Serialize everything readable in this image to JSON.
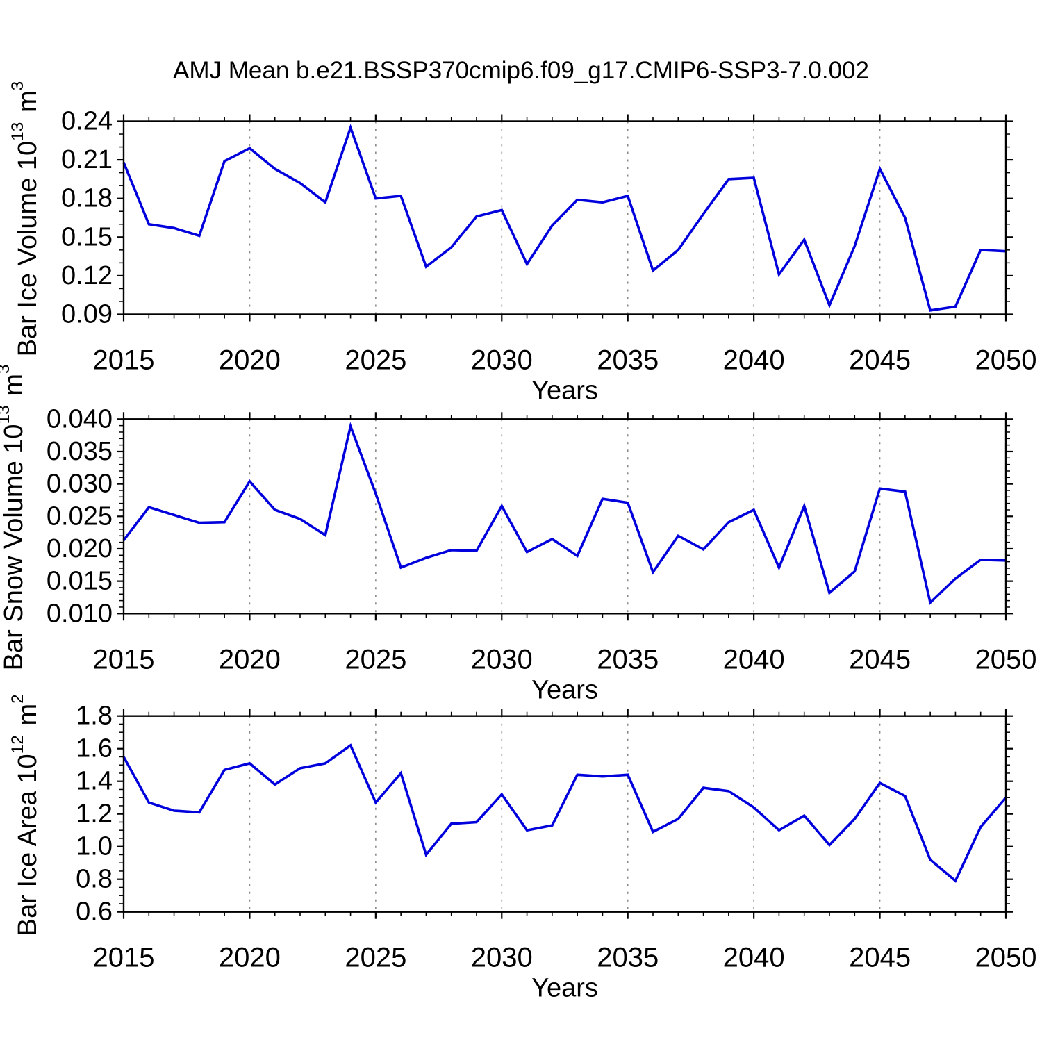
{
  "title": "AMJ Mean b.e21.BSSP370cmip6.f09_g17.CMIP6-SSP3-7.0.002",
  "colors": {
    "line": "#0000dd",
    "grid": "#888888",
    "axis": "#000000",
    "background": "#ffffff"
  },
  "x_axis": {
    "label": "Years",
    "start": 2015,
    "end": 2050,
    "major_tick_step": 5,
    "minor_tick_step": 1,
    "gridline_years": [
      2020,
      2025,
      2030,
      2035,
      2040,
      2045
    ],
    "tick_labels": [
      "2015",
      "2020",
      "2025",
      "2030",
      "2035",
      "2040",
      "2045",
      "2050"
    ]
  },
  "chart_data": [
    {
      "id": "ice-volume-panel",
      "type": "line",
      "ylabel_text": "Bar Ice Volume 10^13 m^3",
      "ylabel_base": "Bar Ice Volume 10",
      "ylabel_exp": "13",
      "ylabel_unit": " m",
      "ylabel_unit_exp": "3",
      "xlabel": "Years",
      "ylim": [
        0.09,
        0.24
      ],
      "yticks": [
        0.09,
        0.12,
        0.15,
        0.18,
        0.21,
        0.24
      ],
      "ytick_labels": [
        "0.09",
        "0.12",
        "0.15",
        "0.18",
        "0.21",
        "0.24"
      ],
      "y_minor_step": 0.01,
      "x": [
        2015,
        2016,
        2017,
        2018,
        2019,
        2020,
        2021,
        2022,
        2023,
        2024,
        2025,
        2026,
        2027,
        2028,
        2029,
        2030,
        2031,
        2032,
        2033,
        2034,
        2035,
        2036,
        2037,
        2038,
        2039,
        2040,
        2041,
        2042,
        2043,
        2044,
        2045,
        2046,
        2047,
        2048,
        2049,
        2050
      ],
      "values": [
        0.208,
        0.16,
        0.157,
        0.151,
        0.209,
        0.219,
        0.203,
        0.192,
        0.177,
        0.235,
        0.18,
        0.182,
        0.127,
        0.142,
        0.166,
        0.171,
        0.129,
        0.159,
        0.179,
        0.177,
        0.182,
        0.124,
        0.14,
        0.168,
        0.195,
        0.196,
        0.121,
        0.148,
        0.097,
        0.143,
        0.203,
        0.165,
        0.093,
        0.096,
        0.14,
        0.139
      ]
    },
    {
      "id": "snow-volume-panel",
      "type": "line",
      "ylabel_text": "Bar Snow Volume 10^13 m^3",
      "ylabel_base": "Bar Snow Volume 10",
      "ylabel_exp": "13",
      "ylabel_unit": " m",
      "ylabel_unit_exp": "3",
      "xlabel": "Years",
      "ylim": [
        0.01,
        0.04
      ],
      "yticks": [
        0.01,
        0.015,
        0.02,
        0.025,
        0.03,
        0.035,
        0.04
      ],
      "ytick_labels": [
        "0.010",
        "0.015",
        "0.020",
        "0.025",
        "0.030",
        "0.035",
        "0.040"
      ],
      "y_minor_step": 0.001,
      "x": [
        2015,
        2016,
        2017,
        2018,
        2019,
        2020,
        2021,
        2022,
        2023,
        2024,
        2025,
        2026,
        2027,
        2028,
        2029,
        2030,
        2031,
        2032,
        2033,
        2034,
        2035,
        2036,
        2037,
        2038,
        2039,
        2040,
        2041,
        2042,
        2043,
        2044,
        2045,
        2046,
        2047,
        2048,
        2049,
        2050
      ],
      "values": [
        0.0213,
        0.0264,
        0.0252,
        0.024,
        0.0241,
        0.0304,
        0.026,
        0.0246,
        0.0221,
        0.0389,
        0.0285,
        0.0171,
        0.0186,
        0.0198,
        0.0197,
        0.0266,
        0.0195,
        0.0215,
        0.0189,
        0.0277,
        0.0271,
        0.0164,
        0.022,
        0.0199,
        0.0241,
        0.026,
        0.0171,
        0.0266,
        0.0132,
        0.0165,
        0.0293,
        0.0288,
        0.0117,
        0.0154,
        0.0183,
        0.0182
      ]
    },
    {
      "id": "ice-area-panel",
      "type": "line",
      "ylabel_text": "Bar Ice Area 10^12 m^2",
      "ylabel_base": "Bar Ice Area 10",
      "ylabel_exp": "12",
      "ylabel_unit": " m",
      "ylabel_unit_exp": "2",
      "xlabel": "Years",
      "ylim": [
        0.6,
        1.8
      ],
      "yticks": [
        0.6,
        0.8,
        1.0,
        1.2,
        1.4,
        1.6,
        1.8
      ],
      "ytick_labels": [
        "0.6",
        "0.8",
        "1.0",
        "1.2",
        "1.4",
        "1.6",
        "1.8"
      ],
      "y_minor_step": 0.05,
      "x": [
        2015,
        2016,
        2017,
        2018,
        2019,
        2020,
        2021,
        2022,
        2023,
        2024,
        2025,
        2026,
        2027,
        2028,
        2029,
        2030,
        2031,
        2032,
        2033,
        2034,
        2035,
        2036,
        2037,
        2038,
        2039,
        2040,
        2041,
        2042,
        2043,
        2044,
        2045,
        2046,
        2047,
        2048,
        2049,
        2050
      ],
      "values": [
        1.55,
        1.27,
        1.22,
        1.21,
        1.47,
        1.51,
        1.38,
        1.48,
        1.51,
        1.62,
        1.27,
        1.45,
        0.95,
        1.14,
        1.15,
        1.32,
        1.1,
        1.13,
        1.44,
        1.43,
        1.44,
        1.09,
        1.17,
        1.36,
        1.34,
        1.24,
        1.1,
        1.19,
        1.01,
        1.17,
        1.39,
        1.31,
        0.92,
        0.79,
        1.12,
        1.3
      ]
    }
  ]
}
